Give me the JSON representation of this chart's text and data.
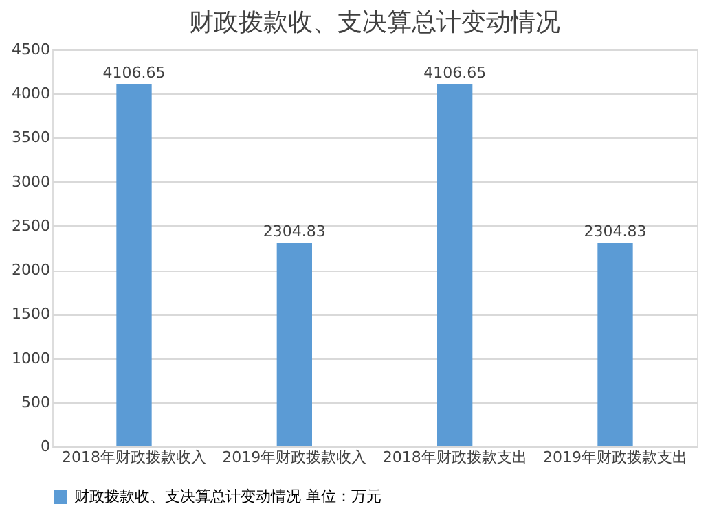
{
  "chart_data": {
    "type": "bar",
    "title": "财政拨款收、支决算总计变动情况",
    "categories": [
      "2018年财政拨款收入",
      "2019年财政拨款收入",
      "2018年财政拨款支出",
      "2019年财政拨款支出"
    ],
    "series": [
      {
        "name": "财政拨款收、支决算总计变动情况    单位：万元",
        "color": "#5b9bd5",
        "values": [
          4106.65,
          2304.83,
          4106.65,
          2304.83
        ]
      }
    ],
    "ylim": [
      0,
      4500
    ],
    "yticks": [
      0,
      500,
      1000,
      1500,
      2000,
      2500,
      3000,
      3500,
      4000,
      4500
    ],
    "grid": "y",
    "legend": "bottom",
    "data_labels": true
  }
}
